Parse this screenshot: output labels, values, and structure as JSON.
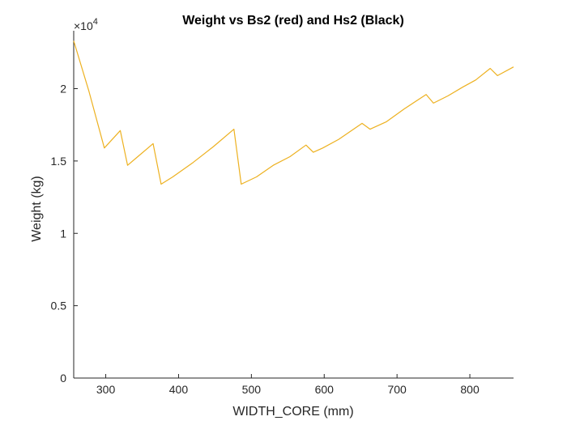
{
  "chart_data": {
    "type": "line",
    "title": "Weight vs Bs2 (red) and Hs2 (Black)",
    "xlabel": "WIDTH_CORE (mm)",
    "ylabel": "Weight (kg)",
    "xlim": [
      256,
      860
    ],
    "ylim": [
      0,
      24000
    ],
    "x_ticks": [
      300,
      400,
      500,
      600,
      700,
      800
    ],
    "x_tick_labels": [
      "300",
      "400",
      "500",
      "600",
      "700",
      "800"
    ],
    "y_ticks": [
      0,
      5000,
      10000,
      15000,
      20000
    ],
    "y_tick_labels": [
      "0",
      "0.5",
      "1",
      "1.5",
      "2"
    ],
    "y_exponent_label": "×10",
    "y_exponent_power": "4",
    "grid": false,
    "line_color": "#EDB120",
    "series": [
      {
        "x": [
          256,
          277,
          298,
          320,
          330,
          344,
          365,
          376,
          392,
          420,
          448,
          476,
          486,
          507,
          530,
          553,
          575,
          585,
          598,
          620,
          652,
          663,
          685,
          710,
          740,
          750,
          770,
          790,
          808,
          828,
          838,
          860
        ],
        "y": [
          23300,
          19800,
          15900,
          17100,
          14700,
          15300,
          16200,
          13400,
          13900,
          14900,
          16000,
          17200,
          13400,
          13900,
          14700,
          15300,
          16100,
          15600,
          15900,
          16500,
          17600,
          17200,
          17700,
          18600,
          19600,
          19000,
          19500,
          20100,
          20600,
          21400,
          20900,
          21500
        ]
      }
    ]
  }
}
